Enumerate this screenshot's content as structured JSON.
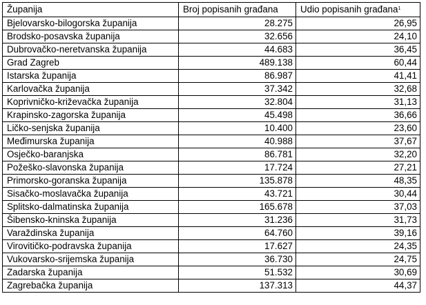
{
  "table": {
    "headers": [
      "Županija",
      "Broj popisanih građana",
      "Udio popisanih građana"
    ],
    "header_footnote": "1",
    "rows": [
      {
        "zupanija": "Bjelovarsko-bilogorska županija",
        "broj": "28.275",
        "udio": "26,95"
      },
      {
        "zupanija": "Brodsko-posavska županija",
        "broj": "32.656",
        "udio": "24,10"
      },
      {
        "zupanija": "Dubrovačko-neretvanska županija",
        "broj": "44.683",
        "udio": "36,45"
      },
      {
        "zupanija": "Grad Zagreb",
        "broj": "489.138",
        "udio": "60,44"
      },
      {
        "zupanija": "Istarska županija",
        "broj": "86.987",
        "udio": "41,41"
      },
      {
        "zupanija": "Karlovačka županija",
        "broj": "37.342",
        "udio": "32,68"
      },
      {
        "zupanija": "Koprivničko-križevačka županija",
        "broj": "32.804",
        "udio": "31,13"
      },
      {
        "zupanija": "Krapinsko-zagorska županija",
        "broj": "45.498",
        "udio": "36,66"
      },
      {
        "zupanija": "Ličko-senjska županija",
        "broj": "10.400",
        "udio": "23,60"
      },
      {
        "zupanija": "Međimurska županija",
        "broj": "40.988",
        "udio": "37,67"
      },
      {
        "zupanija": "Osječko-baranjska",
        "broj": "86.781",
        "udio": "32,20"
      },
      {
        "zupanija": "Požeško-slavonska županija",
        "broj": "17.724",
        "udio": "27,21"
      },
      {
        "zupanija": "Primorsko-goranska županija",
        "broj": "135.878",
        "udio": "48,35"
      },
      {
        "zupanija": "Sisačko-moslavačka županija",
        "broj": "43.721",
        "udio": "30,44"
      },
      {
        "zupanija": "Splitsko-dalmatinska županija",
        "broj": "165.678",
        "udio": "37,03"
      },
      {
        "zupanija": "Šibensko-kninska županija",
        "broj": "31.236",
        "udio": "31,73"
      },
      {
        "zupanija": "Varaždinska županija",
        "broj": "64.760",
        "udio": "39,16"
      },
      {
        "zupanija": "Virovitičko-podravska županija",
        "broj": "17.627",
        "udio": "24,35"
      },
      {
        "zupanija": "Vukovarsko-srijemska županija",
        "broj": "36.730",
        "udio": "24,75"
      },
      {
        "zupanija": "Zadarska županija",
        "broj": "51.532",
        "udio": "30,69"
      },
      {
        "zupanija": "Zagrebačka županija",
        "broj": "137.313",
        "udio": "44,37"
      }
    ]
  }
}
